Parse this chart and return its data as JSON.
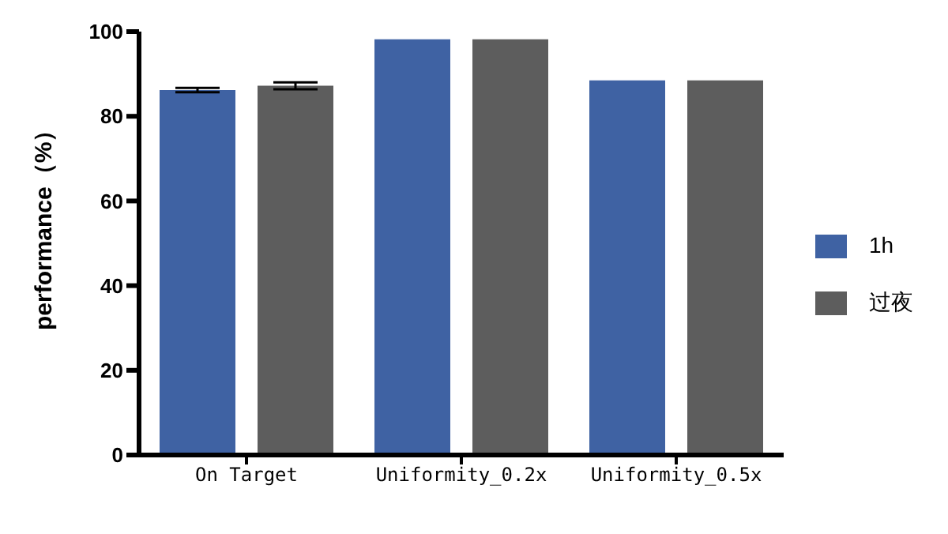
{
  "chart_data": {
    "type": "bar",
    "ylabel": "performance（%）",
    "categories": [
      "On Target",
      "Uniformity_0.2x",
      "Uniformity_0.5x"
    ],
    "series": [
      {
        "name": "1h",
        "color": "#3f62a3",
        "values": [
          86.2,
          98.2,
          88.5
        ],
        "errors": [
          0.5,
          null,
          null
        ]
      },
      {
        "name": "过夜",
        "color": "#5d5d5d",
        "values": [
          87.2,
          98.2,
          88.5
        ],
        "errors": [
          0.8,
          null,
          null
        ]
      }
    ],
    "ylim": [
      0,
      100
    ],
    "yticks": [
      0,
      20,
      40,
      60,
      80,
      100
    ],
    "grid": false,
    "legend": "right"
  }
}
